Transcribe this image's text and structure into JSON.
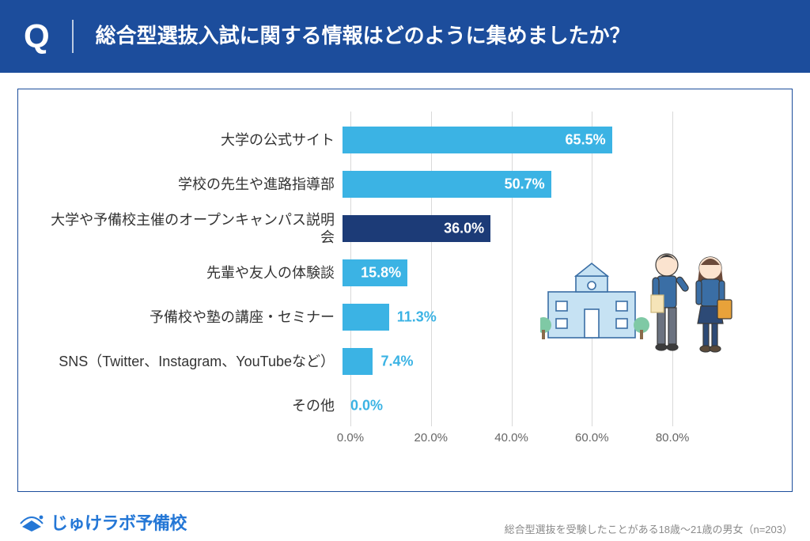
{
  "header": {
    "q_mark": "Q",
    "question": "総合型選抜入試に関する情報はどのように集めましたか？",
    "bg_color": "#1c4d9c",
    "text_color": "#ffffff"
  },
  "chart": {
    "type": "bar-horizontal",
    "x_max": 90,
    "x_ticks": [
      0,
      20,
      40,
      60,
      80
    ],
    "x_tick_labels": [
      "0.0%",
      "20.0%",
      "40.0%",
      "60.0%",
      "80.0%"
    ],
    "grid_color": "#d9d9d9",
    "label_color": "#333333",
    "label_fontsize": 18,
    "value_fontsize": 18,
    "bars": [
      {
        "label": "大学の公式サイト",
        "value": 65.5,
        "display": "65.5%",
        "fill": "#3bb3e4",
        "value_inside": true,
        "value_color": "#ffffff"
      },
      {
        "label": "学校の先生や進路指導部",
        "value": 50.7,
        "display": "50.7%",
        "fill": "#3bb3e4",
        "value_inside": true,
        "value_color": "#ffffff"
      },
      {
        "label": "大学や予備校主催のオープンキャンパス説明会",
        "value": 36.0,
        "display": "36.0%",
        "fill": "#1c3b77",
        "value_inside": true,
        "value_color": "#ffffff"
      },
      {
        "label": "先輩や友人の体験談",
        "value": 15.8,
        "display": "15.8%",
        "fill": "#3bb3e4",
        "value_inside": true,
        "value_color": "#ffffff"
      },
      {
        "label": "予備校や塾の講座・セミナー",
        "value": 11.3,
        "display": "11.3%",
        "fill": "#3bb3e4",
        "value_inside": false,
        "value_color": "#3bb3e4"
      },
      {
        "label": "SNS（Twitter、Instagram、YouTubeなど）",
        "value": 7.4,
        "display": "7.4%",
        "fill": "#3bb3e4",
        "value_inside": false,
        "value_color": "#3bb3e4"
      },
      {
        "label": "その他",
        "value": 0.0,
        "display": "0.0%",
        "fill": "#3bb3e4",
        "value_inside": false,
        "value_color": "#3bb3e4"
      }
    ]
  },
  "illustration": {
    "school_fill": "#c6e2f3",
    "school_stroke": "#3a6ea5",
    "tree_fill": "#7fc9a5",
    "boy_jacket": "#3a6ea5",
    "boy_pants": "#6b7280",
    "girl_jacket": "#3a6ea5",
    "girl_skirt": "#2d4a76",
    "girl_bag": "#e8a23a",
    "skin": "#fbe3cf",
    "hair_boy": "#3b3b3b",
    "hair_girl": "#6b4a3a"
  },
  "footer": {
    "logo_text": "じゅけラボ予備校",
    "logo_color": "#2477d6",
    "source": "総合型選抜を受験したことがある18歳～21歳の男女（n=203）",
    "source_color": "#8a8a8a"
  }
}
